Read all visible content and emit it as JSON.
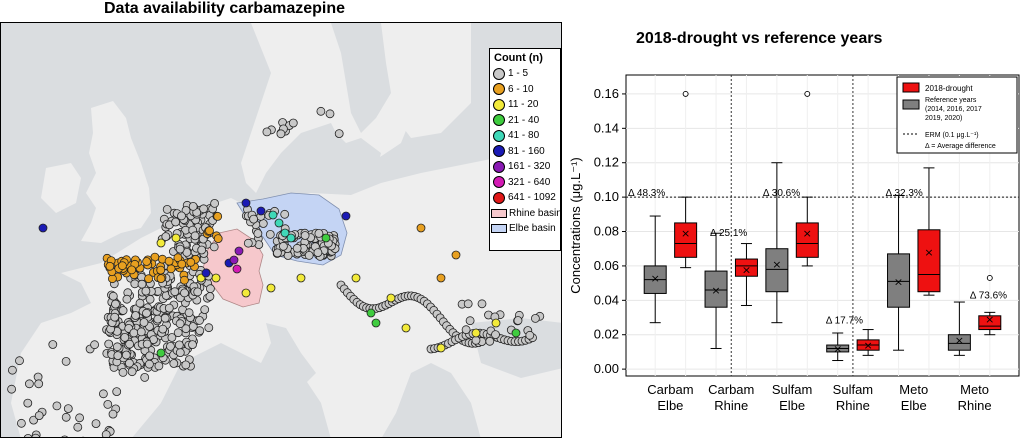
{
  "map": {
    "title": "Data availability carbamazepine",
    "legend": {
      "title": "Count (n)",
      "items": [
        {
          "label": "1 - 5",
          "color": "#c8c8c8"
        },
        {
          "label": "6 - 10",
          "color": "#e8a020"
        },
        {
          "label": "11 - 20",
          "color": "#f2ea3a"
        },
        {
          "label": "21 - 40",
          "color": "#3fcc3f"
        },
        {
          "label": "41 - 80",
          "color": "#3fd8b8"
        },
        {
          "label": "81 - 160",
          "color": "#1a1ab4"
        },
        {
          "label": "161 - 320",
          "color": "#8a1ab4"
        },
        {
          "label": "321 - 640",
          "color": "#d41ab4"
        },
        {
          "label": "641 - 1092",
          "color": "#e01818"
        }
      ],
      "basins": [
        {
          "label": "Rhine basin",
          "color": "#f6c8cc"
        },
        {
          "label": "Elbe basin",
          "color": "#c4d4f4"
        }
      ]
    }
  },
  "chart_data": {
    "type": "box",
    "title": "2018-drought vs reference years",
    "ylabel": "Concentrations (μg.L⁻¹)",
    "ylim": [
      -0.004,
      0.171
    ],
    "yticks": [
      "0.00",
      "0.02",
      "0.04",
      "0.06",
      "0.08",
      "0.10",
      "0.12",
      "0.14",
      "0.16"
    ],
    "categories": [
      {
        "line1": "Carbam",
        "line2": "Elbe",
        "diff": "Δ 48.3%"
      },
      {
        "line1": "Carbam",
        "line2": "Rhine",
        "diff": "Δ 25.1%"
      },
      {
        "line1": "Sulfam",
        "line2": "Elbe",
        "diff": "Δ 30.6%"
      },
      {
        "line1": "Sulfam",
        "line2": "Rhine",
        "diff": "Δ 17.7%"
      },
      {
        "line1": "Meto",
        "line2": "Elbe",
        "diff": "Δ 32.3%"
      },
      {
        "line1": "Meto",
        "line2": "Rhine",
        "diff": "Δ 73.6%"
      }
    ],
    "series": [
      {
        "name": "Reference years (2014, 2016, 2017 2019, 2020)",
        "color": "#7f7f7f",
        "boxes": [
          {
            "whislo": 0.027,
            "q1": 0.044,
            "med": 0.052,
            "q3": 0.06,
            "whishi": 0.089,
            "mean": 0.053,
            "fliers": []
          },
          {
            "whislo": 0.012,
            "q1": 0.036,
            "med": 0.046,
            "q3": 0.057,
            "whishi": 0.079,
            "mean": 0.046,
            "fliers": []
          },
          {
            "whislo": 0.027,
            "q1": 0.045,
            "med": 0.058,
            "q3": 0.07,
            "whishi": 0.12,
            "mean": 0.061,
            "fliers": []
          },
          {
            "whislo": 0.005,
            "q1": 0.01,
            "med": 0.012,
            "q3": 0.014,
            "whishi": 0.021,
            "mean": 0.012,
            "fliers": []
          },
          {
            "whislo": 0.011,
            "q1": 0.036,
            "med": 0.051,
            "q3": 0.067,
            "whishi": 0.101,
            "mean": 0.051,
            "fliers": []
          },
          {
            "whislo": 0.008,
            "q1": 0.011,
            "med": 0.015,
            "q3": 0.02,
            "whishi": 0.039,
            "mean": 0.017,
            "fliers": []
          }
        ]
      },
      {
        "name": "2018-drought",
        "color": "#ee1111",
        "boxes": [
          {
            "whislo": 0.059,
            "q1": 0.065,
            "med": 0.073,
            "q3": 0.085,
            "whishi": 0.1,
            "mean": 0.079,
            "fliers": [
              0.16
            ]
          },
          {
            "whislo": 0.037,
            "q1": 0.054,
            "med": 0.06,
            "q3": 0.064,
            "whishi": 0.073,
            "mean": 0.058,
            "fliers": []
          },
          {
            "whislo": 0.06,
            "q1": 0.065,
            "med": 0.073,
            "q3": 0.085,
            "whishi": 0.1,
            "mean": 0.079,
            "fliers": [
              0.16
            ]
          },
          {
            "whislo": 0.008,
            "q1": 0.011,
            "med": 0.014,
            "q3": 0.017,
            "whishi": 0.023,
            "mean": 0.014,
            "fliers": []
          },
          {
            "whislo": 0.043,
            "q1": 0.045,
            "med": 0.055,
            "q3": 0.081,
            "whishi": 0.117,
            "mean": 0.068,
            "fliers": []
          },
          {
            "whislo": 0.02,
            "q1": 0.023,
            "med": 0.025,
            "q3": 0.031,
            "whishi": 0.033,
            "mean": 0.029,
            "fliers": [
              0.053
            ]
          }
        ]
      }
    ],
    "erm": {
      "value": 0.1,
      "label": "ERM (0.1 μg.L⁻¹)"
    },
    "legend": {
      "position": "top-right",
      "drought": "2018-drought",
      "reference_line1": "Reference years",
      "reference_line2": "(2014, 2016, 2017",
      "reference_line3": "2019, 2020)",
      "erm": "ERM (0.1 μg.L⁻¹)",
      "delta": "Δ = Average difference"
    }
  }
}
